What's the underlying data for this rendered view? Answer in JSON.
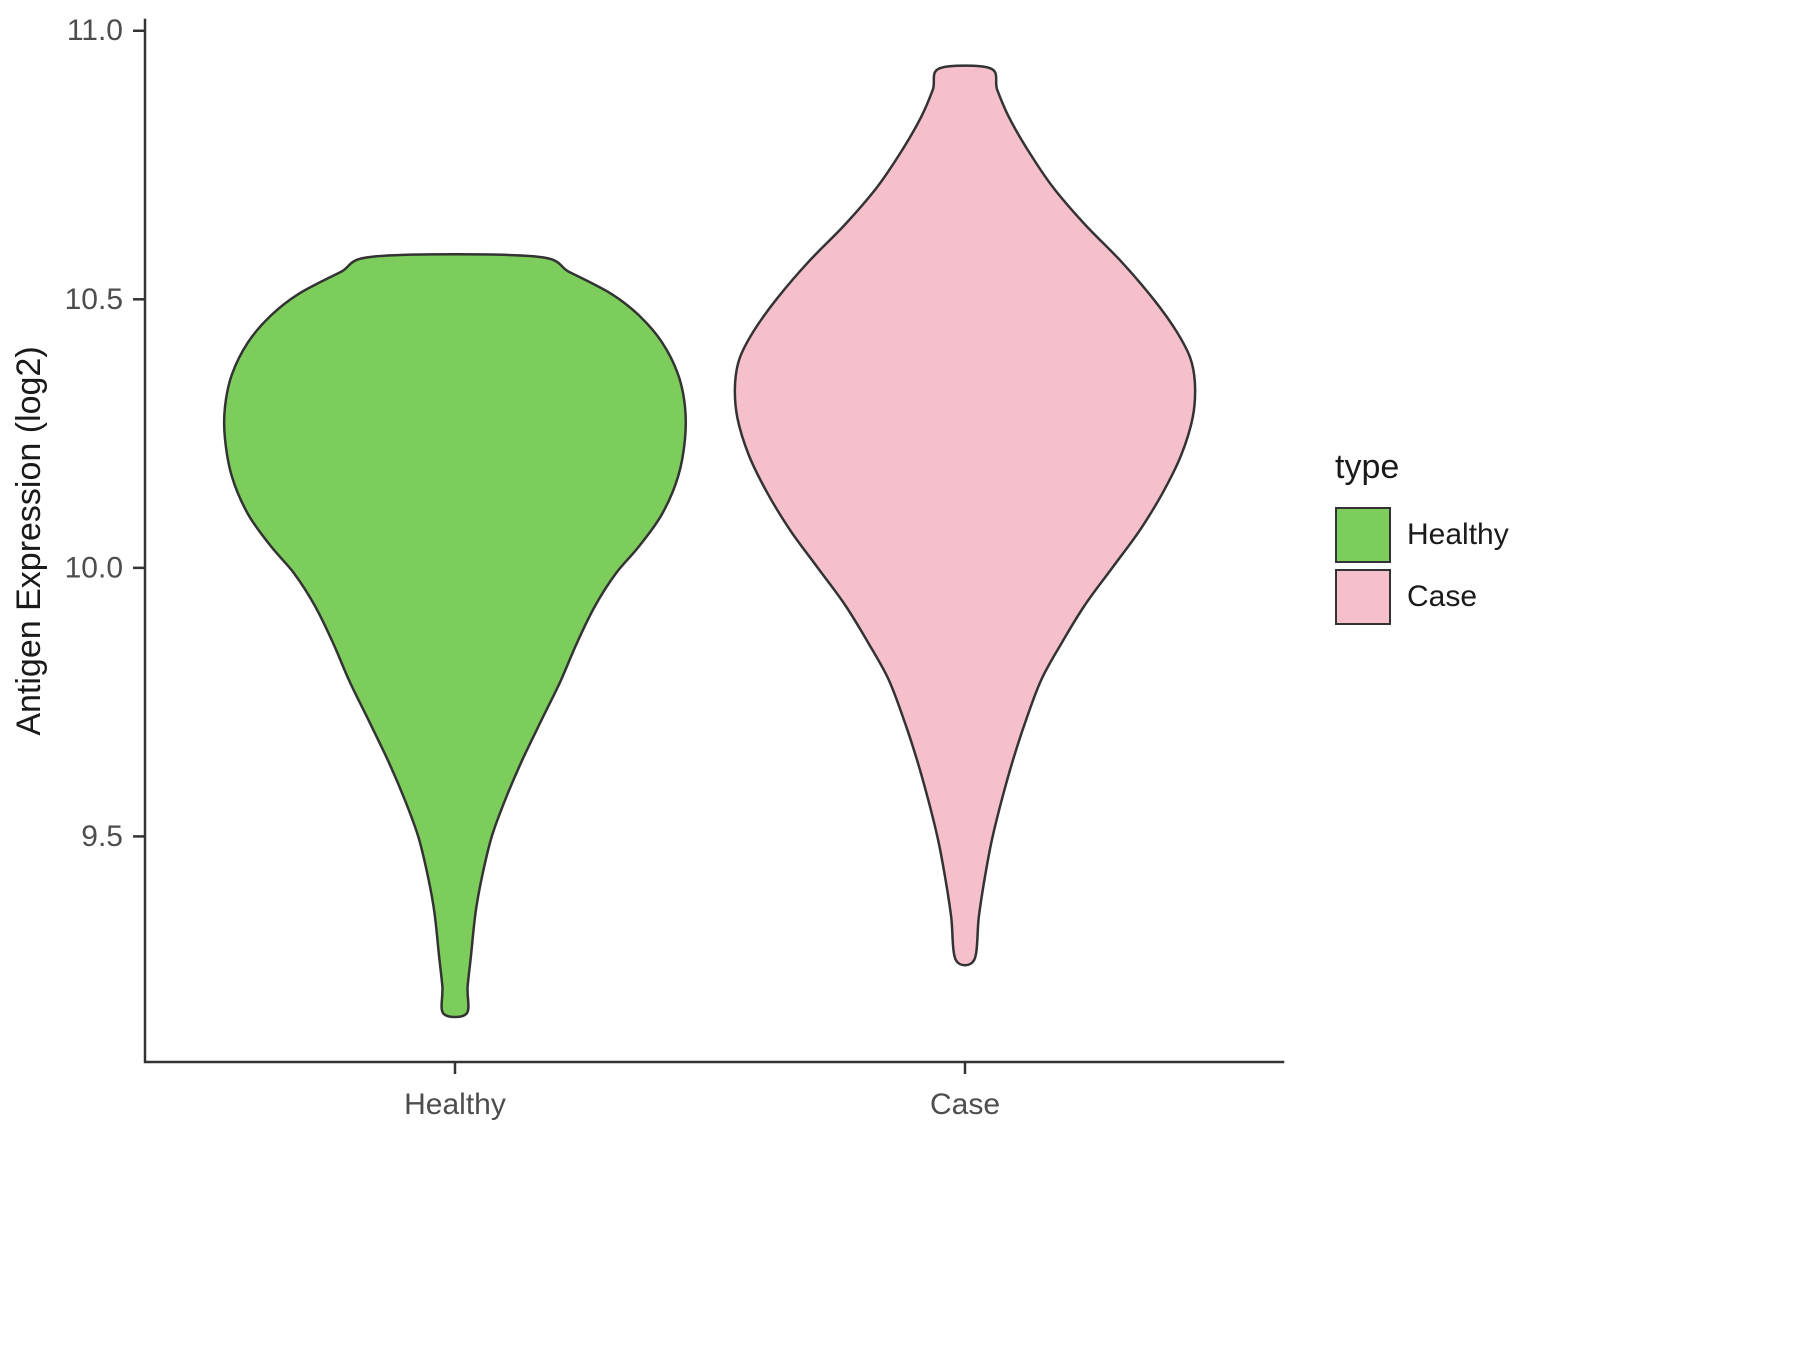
{
  "figure": {
    "background": "#ffffff"
  },
  "legend": {
    "title": "type",
    "items": [
      {
        "label": "Healthy",
        "color": "#7DCD5C"
      },
      {
        "label": "Case",
        "color": "#F6BFCC"
      }
    ]
  },
  "chart_data": {
    "type": "violin",
    "title": "",
    "xlabel": "",
    "ylabel": "Antigen Expression (log2)",
    "ylim": [
      9.08,
      11.02
    ],
    "yticks": [
      9.5,
      10.0,
      10.5,
      11.0
    ],
    "ytick_labels": [
      "9.5",
      "10.0",
      "10.5",
      "11.0"
    ],
    "categories": [
      "Healthy",
      "Case"
    ],
    "grid": false,
    "legend_position": "right",
    "axis_color": "#333333",
    "tick_label_color": "#4d4d4d",
    "axis_title_color": "#1a1a1a",
    "series": [
      {
        "name": "Healthy",
        "fill": "#7DCD5C",
        "outline": "#333333",
        "min": 9.17,
        "max": 10.58,
        "density_profile": [
          [
            10.58,
            0.34
          ],
          [
            10.55,
            0.5
          ],
          [
            10.51,
            0.68
          ],
          [
            10.47,
            0.8
          ],
          [
            10.42,
            0.9
          ],
          [
            10.36,
            0.97
          ],
          [
            10.3,
            1.0
          ],
          [
            10.24,
            1.0
          ],
          [
            10.17,
            0.97
          ],
          [
            10.1,
            0.9
          ],
          [
            10.04,
            0.8
          ],
          [
            9.99,
            0.7
          ],
          [
            9.93,
            0.61
          ],
          [
            9.86,
            0.53
          ],
          [
            9.79,
            0.46
          ],
          [
            9.72,
            0.38
          ],
          [
            9.64,
            0.29
          ],
          [
            9.57,
            0.22
          ],
          [
            9.5,
            0.16
          ],
          [
            9.43,
            0.12
          ],
          [
            9.36,
            0.09
          ],
          [
            9.28,
            0.07
          ],
          [
            9.22,
            0.055
          ],
          [
            9.17,
            0.05
          ]
        ]
      },
      {
        "name": "Case",
        "fill": "#F6BFCC",
        "outline": "#333333",
        "min": 9.27,
        "max": 10.93,
        "density_profile": [
          [
            10.93,
            0.11
          ],
          [
            10.89,
            0.14
          ],
          [
            10.84,
            0.19
          ],
          [
            10.78,
            0.27
          ],
          [
            10.71,
            0.38
          ],
          [
            10.64,
            0.52
          ],
          [
            10.57,
            0.68
          ],
          [
            10.5,
            0.82
          ],
          [
            10.44,
            0.92
          ],
          [
            10.39,
            0.98
          ],
          [
            10.34,
            1.0
          ],
          [
            10.28,
            0.99
          ],
          [
            10.21,
            0.94
          ],
          [
            10.14,
            0.86
          ],
          [
            10.07,
            0.76
          ],
          [
            10.0,
            0.64
          ],
          [
            9.93,
            0.52
          ],
          [
            9.86,
            0.42
          ],
          [
            9.79,
            0.33
          ],
          [
            9.71,
            0.26
          ],
          [
            9.63,
            0.2
          ],
          [
            9.56,
            0.155
          ],
          [
            9.49,
            0.115
          ],
          [
            9.42,
            0.085
          ],
          [
            9.35,
            0.06
          ],
          [
            9.27,
            0.04
          ]
        ]
      }
    ]
  }
}
